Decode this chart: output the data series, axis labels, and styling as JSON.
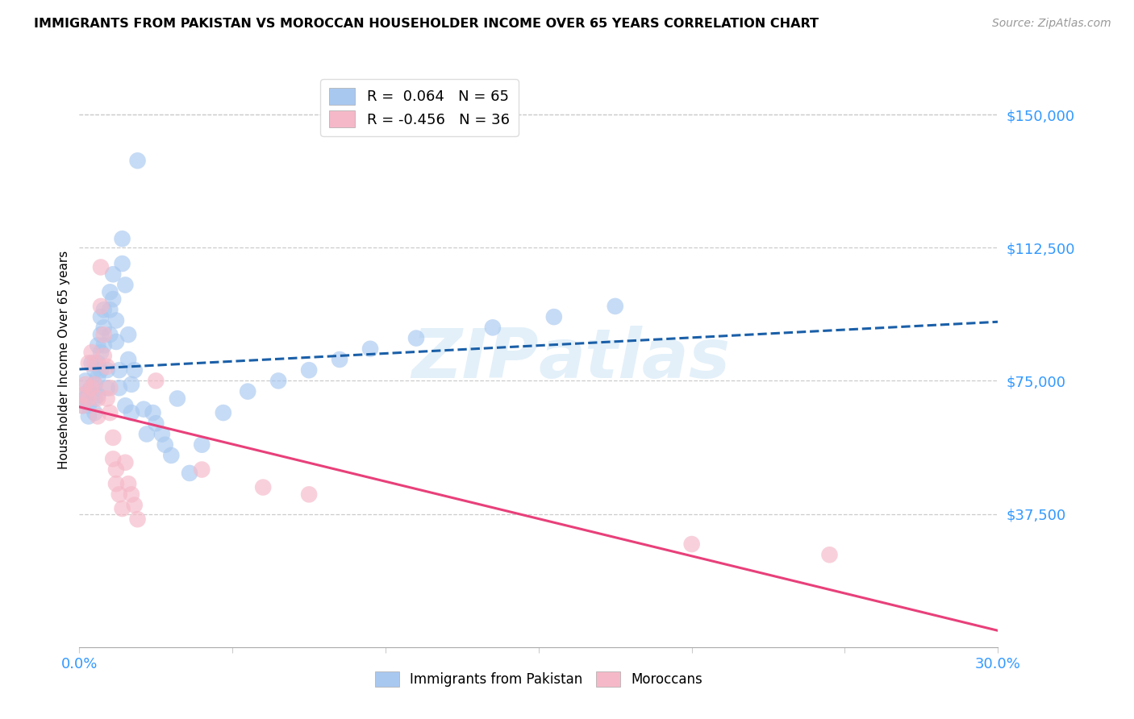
{
  "title": "IMMIGRANTS FROM PAKISTAN VS MOROCCAN HOUSEHOLDER INCOME OVER 65 YEARS CORRELATION CHART",
  "source": "Source: ZipAtlas.com",
  "ylabel": "Householder Income Over 65 years",
  "xlim": [
    0.0,
    0.3
  ],
  "ylim": [
    0,
    162000
  ],
  "watermark": "ZIPatlas",
  "legend1_label": "R =  0.064   N = 65",
  "legend2_label": "R = -0.456   N = 36",
  "pakistan_color": "#a8c8f0",
  "pakistan_line_color": "#1a5fa8",
  "morocco_color": "#f5b8c8",
  "morocco_line_color": "#e8407a",
  "ytick_vals": [
    0,
    37500,
    75000,
    112500,
    150000
  ],
  "ytick_labels": [
    "",
    "$37,500",
    "$75,000",
    "$112,500",
    "$150,000"
  ],
  "pak_x": [
    0.001,
    0.001,
    0.002,
    0.002,
    0.003,
    0.003,
    0.003,
    0.004,
    0.004,
    0.005,
    0.005,
    0.005,
    0.005,
    0.006,
    0.006,
    0.006,
    0.006,
    0.007,
    0.007,
    0.007,
    0.007,
    0.008,
    0.008,
    0.008,
    0.009,
    0.009,
    0.01,
    0.01,
    0.01,
    0.011,
    0.011,
    0.012,
    0.012,
    0.013,
    0.013,
    0.014,
    0.014,
    0.015,
    0.015,
    0.016,
    0.016,
    0.017,
    0.017,
    0.018,
    0.019,
    0.021,
    0.022,
    0.024,
    0.025,
    0.027,
    0.028,
    0.03,
    0.032,
    0.036,
    0.04,
    0.047,
    0.055,
    0.065,
    0.075,
    0.085,
    0.095,
    0.11,
    0.135,
    0.155,
    0.175
  ],
  "pak_y": [
    71000,
    68000,
    75000,
    70000,
    72000,
    68000,
    65000,
    80000,
    73000,
    78000,
    74000,
    70000,
    66000,
    85000,
    80000,
    76000,
    71000,
    93000,
    88000,
    83000,
    78000,
    95000,
    90000,
    85000,
    78000,
    73000,
    100000,
    95000,
    88000,
    105000,
    98000,
    92000,
    86000,
    78000,
    73000,
    115000,
    108000,
    102000,
    68000,
    88000,
    81000,
    74000,
    66000,
    78000,
    137000,
    67000,
    60000,
    66000,
    63000,
    60000,
    57000,
    54000,
    70000,
    49000,
    57000,
    66000,
    72000,
    75000,
    78000,
    81000,
    84000,
    87000,
    90000,
    93000,
    96000
  ],
  "mor_x": [
    0.001,
    0.001,
    0.002,
    0.003,
    0.003,
    0.004,
    0.004,
    0.005,
    0.005,
    0.006,
    0.006,
    0.007,
    0.007,
    0.008,
    0.008,
    0.009,
    0.009,
    0.01,
    0.01,
    0.011,
    0.011,
    0.012,
    0.012,
    0.013,
    0.014,
    0.015,
    0.016,
    0.017,
    0.018,
    0.019,
    0.025,
    0.04,
    0.06,
    0.075,
    0.2,
    0.245
  ],
  "mor_y": [
    71000,
    68000,
    74000,
    80000,
    70000,
    83000,
    73000,
    80000,
    74000,
    70000,
    65000,
    107000,
    96000,
    88000,
    82000,
    79000,
    70000,
    73000,
    66000,
    59000,
    53000,
    50000,
    46000,
    43000,
    39000,
    52000,
    46000,
    43000,
    40000,
    36000,
    75000,
    50000,
    45000,
    43000,
    29000,
    26000
  ]
}
